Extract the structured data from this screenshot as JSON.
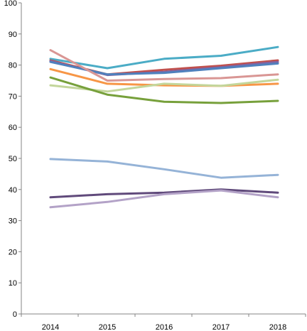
{
  "chart_data": {
    "type": "line",
    "categories": [
      "2014",
      "2015",
      "2016",
      "2017",
      "2018"
    ],
    "ylim": [
      0,
      100
    ],
    "yticks": [
      0,
      10,
      20,
      30,
      40,
      50,
      60,
      70,
      80,
      90,
      100
    ],
    "grid": false,
    "legend": "none",
    "series": [
      {
        "color": "#4BACC6",
        "values": [
          82.0,
          79.0,
          82.0,
          83.0,
          85.8
        ]
      },
      {
        "color": "#C0504D",
        "values": [
          81.5,
          77.0,
          78.5,
          79.8,
          81.5
        ]
      },
      {
        "color": "#8064A2",
        "values": [
          81.3,
          76.8,
          77.8,
          79.3,
          81.0
        ]
      },
      {
        "color": "#4F81BD",
        "values": [
          81.0,
          77.0,
          77.5,
          79.0,
          80.5
        ]
      },
      {
        "color": "#D99694",
        "values": [
          84.8,
          75.0,
          75.5,
          75.8,
          77.0
        ]
      },
      {
        "color": "#F79646",
        "values": [
          78.7,
          74.0,
          73.5,
          73.3,
          74.0
        ]
      },
      {
        "color": "#C3D69B",
        "values": [
          73.5,
          71.5,
          74.0,
          73.3,
          75.3
        ]
      },
      {
        "color": "#77A03B",
        "values": [
          76.0,
          70.5,
          68.2,
          67.8,
          68.5
        ]
      },
      {
        "color": "#95B3D7",
        "values": [
          49.8,
          49.0,
          46.5,
          43.8,
          44.7
        ]
      },
      {
        "color": "#604A7B",
        "values": [
          37.5,
          38.5,
          39.0,
          40.0,
          39.0
        ]
      },
      {
        "color": "#B3A2C7",
        "values": [
          34.3,
          36.0,
          38.5,
          39.7,
          37.5
        ]
      }
    ]
  }
}
